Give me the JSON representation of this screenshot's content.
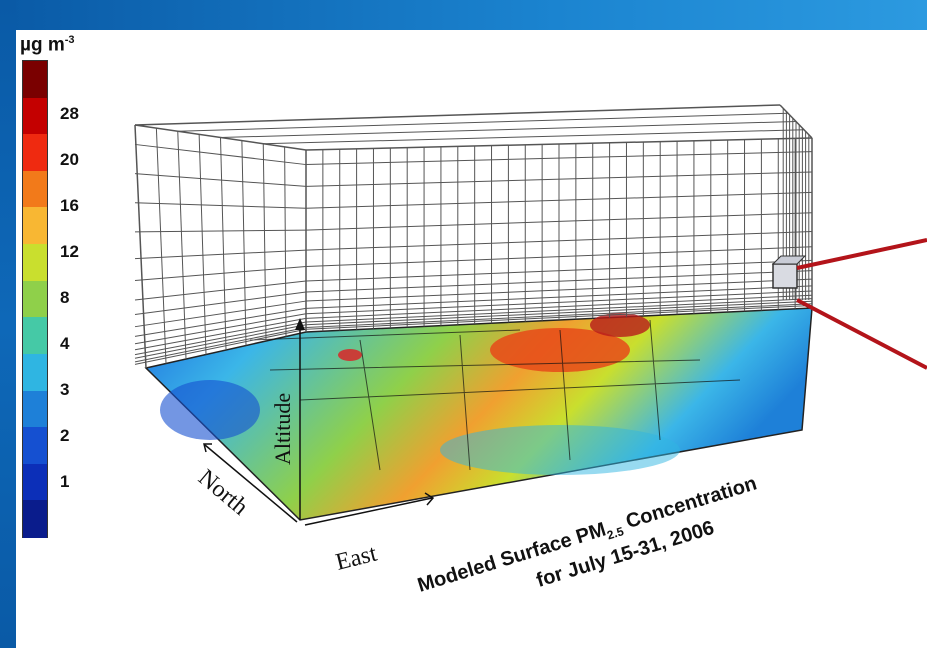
{
  "colorbar": {
    "unit_base": "µg m",
    "unit_exp": "-3",
    "ticks": [
      "28",
      "20",
      "16",
      "12",
      "8",
      "4",
      "3",
      "2",
      "1"
    ],
    "colors": [
      "#7a0000",
      "#c40000",
      "#ef2a10",
      "#f27a1a",
      "#f8b733",
      "#c9df2e",
      "#8fd04a",
      "#45c9a6",
      "#2fb5e2",
      "#1e80d8",
      "#1550d1",
      "#0c2fb8",
      "#0a1c8c"
    ]
  },
  "diagram": {
    "axis_altitude": "Altitude",
    "axis_north": "North",
    "axis_east": "East",
    "title_line1_a": "Modeled Surface PM",
    "title_line1_sub": "2.5",
    "title_line1_b": " Concentration",
    "title_line2": "for July 15-31, 2006"
  },
  "colors": {
    "frame_blue": "#0a5aa6",
    "pointer_red": "#b3141a",
    "grid_line": "#555555"
  }
}
